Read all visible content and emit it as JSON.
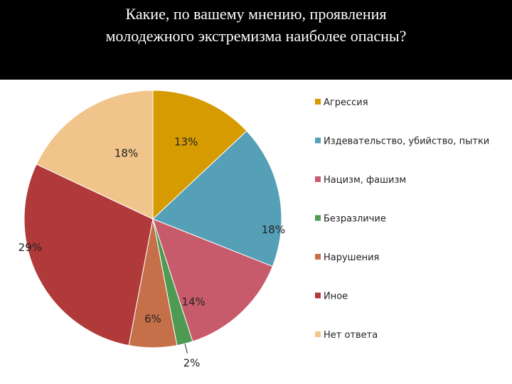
{
  "title_lines": [
    "Какие, по вашему мнению, проявления",
    "молодежного экстремизма наиболее  опасны?"
  ],
  "chart_data": {
    "type": "pie",
    "title": "Какие, по вашему мнению, проявления молодежного экстремизма наиболее  опасны?",
    "categories": [
      "Агрессия",
      "Издевательство, убийство, пытки",
      "Нацизм, фашизм",
      "Безразличие",
      "Нарушения",
      "Иное",
      "Нет ответа"
    ],
    "values": [
      13,
      18,
      14,
      2,
      6,
      29,
      18
    ],
    "labels": [
      "13%",
      "18%",
      "14%",
      "2%",
      "6%",
      "29%",
      "18%"
    ],
    "colors": [
      "#D69B00",
      "#55A0B6",
      "#C75B6B",
      "#4E9A52",
      "#C6704A",
      "#B03A3A",
      "#F0C48A"
    ],
    "legend_position": "right",
    "start_angle": "12 o'clock, clockwise"
  }
}
